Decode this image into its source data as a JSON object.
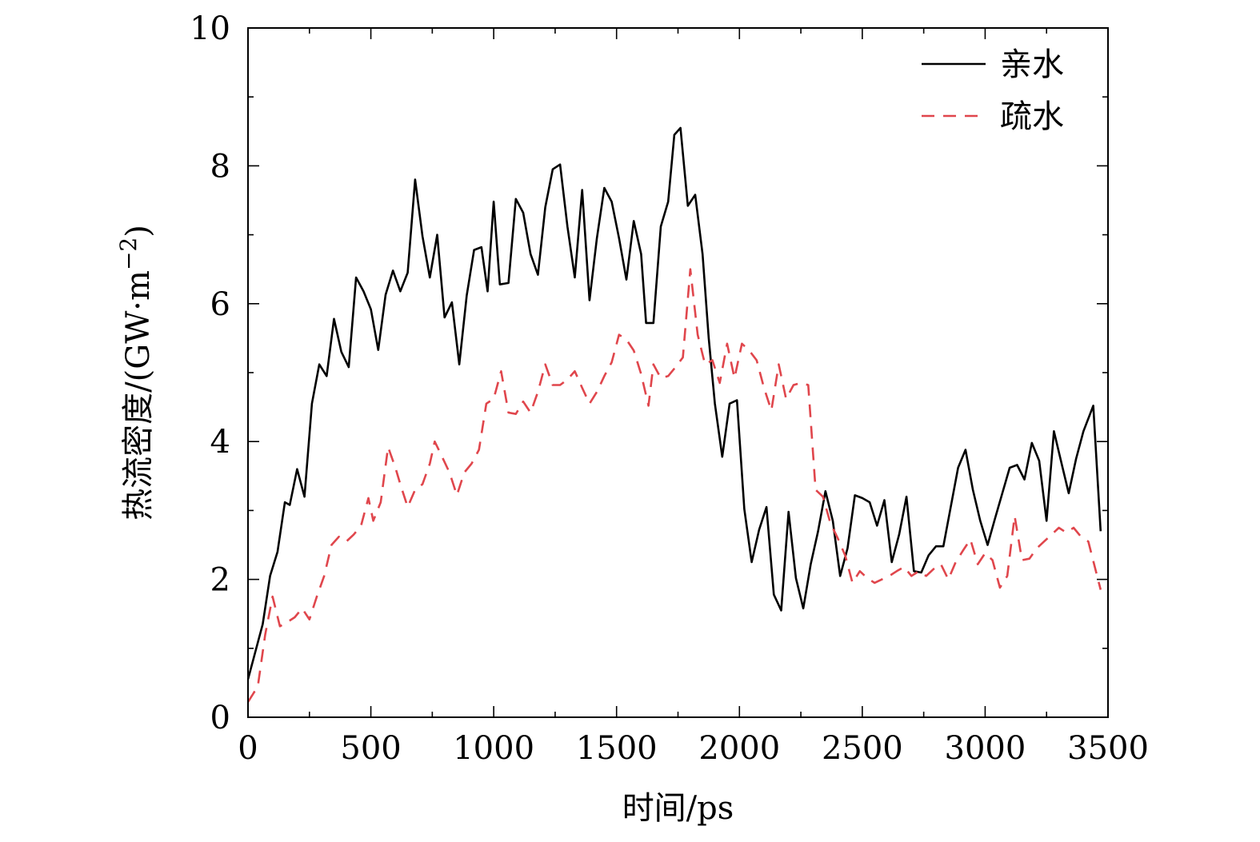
{
  "chart_data": {
    "type": "line",
    "xlabel": "时间/ps",
    "ylabel_main": "热流密度/(GW·m",
    "ylabel_exp": "−2",
    "ylabel_close": ")",
    "xlim": [
      0,
      3500
    ],
    "ylim": [
      0,
      10
    ],
    "xticks": [
      0,
      500,
      1000,
      1500,
      2000,
      2500,
      3000,
      3500
    ],
    "yticks": [
      0,
      2,
      4,
      6,
      8,
      10
    ],
    "legend_position": "top-right",
    "series": [
      {
        "name": "亲水",
        "color": "#000000",
        "style": "solid",
        "points": [
          [
            0,
            0.55
          ],
          [
            30,
            0.95
          ],
          [
            60,
            1.35
          ],
          [
            90,
            2.05
          ],
          [
            120,
            2.4
          ],
          [
            150,
            3.12
          ],
          [
            170,
            3.08
          ],
          [
            200,
            3.6
          ],
          [
            230,
            3.2
          ],
          [
            260,
            4.55
          ],
          [
            290,
            5.12
          ],
          [
            320,
            4.95
          ],
          [
            350,
            5.78
          ],
          [
            380,
            5.3
          ],
          [
            410,
            5.08
          ],
          [
            440,
            6.38
          ],
          [
            470,
            6.18
          ],
          [
            500,
            5.92
          ],
          [
            530,
            5.33
          ],
          [
            560,
            6.13
          ],
          [
            590,
            6.48
          ],
          [
            620,
            6.18
          ],
          [
            650,
            6.45
          ],
          [
            680,
            7.8
          ],
          [
            710,
            6.98
          ],
          [
            740,
            6.38
          ],
          [
            770,
            7.0
          ],
          [
            800,
            5.8
          ],
          [
            830,
            6.02
          ],
          [
            860,
            5.12
          ],
          [
            890,
            6.12
          ],
          [
            920,
            6.78
          ],
          [
            950,
            6.82
          ],
          [
            975,
            6.18
          ],
          [
            1000,
            7.48
          ],
          [
            1025,
            6.28
          ],
          [
            1060,
            6.3
          ],
          [
            1090,
            7.52
          ],
          [
            1120,
            7.32
          ],
          [
            1150,
            6.72
          ],
          [
            1180,
            6.42
          ],
          [
            1210,
            7.4
          ],
          [
            1240,
            7.95
          ],
          [
            1270,
            8.02
          ],
          [
            1300,
            7.12
          ],
          [
            1330,
            6.38
          ],
          [
            1360,
            7.65
          ],
          [
            1390,
            6.05
          ],
          [
            1420,
            6.95
          ],
          [
            1450,
            7.68
          ],
          [
            1480,
            7.48
          ],
          [
            1510,
            6.95
          ],
          [
            1540,
            6.35
          ],
          [
            1570,
            7.2
          ],
          [
            1600,
            6.72
          ],
          [
            1620,
            5.72
          ],
          [
            1650,
            5.72
          ],
          [
            1680,
            7.12
          ],
          [
            1710,
            7.48
          ],
          [
            1735,
            8.45
          ],
          [
            1760,
            8.55
          ],
          [
            1790,
            7.42
          ],
          [
            1820,
            7.58
          ],
          [
            1850,
            6.72
          ],
          [
            1875,
            5.5
          ],
          [
            1900,
            4.55
          ],
          [
            1930,
            3.78
          ],
          [
            1960,
            4.55
          ],
          [
            1990,
            4.6
          ],
          [
            2020,
            3.02
          ],
          [
            2050,
            2.25
          ],
          [
            2080,
            2.72
          ],
          [
            2110,
            3.05
          ],
          [
            2140,
            1.78
          ],
          [
            2170,
            1.55
          ],
          [
            2200,
            2.98
          ],
          [
            2230,
            2.02
          ],
          [
            2260,
            1.58
          ],
          [
            2290,
            2.22
          ],
          [
            2320,
            2.7
          ],
          [
            2350,
            3.28
          ],
          [
            2380,
            2.85
          ],
          [
            2410,
            2.05
          ],
          [
            2440,
            2.45
          ],
          [
            2470,
            3.22
          ],
          [
            2500,
            3.18
          ],
          [
            2530,
            3.12
          ],
          [
            2560,
            2.78
          ],
          [
            2590,
            3.15
          ],
          [
            2620,
            2.25
          ],
          [
            2650,
            2.65
          ],
          [
            2680,
            3.2
          ],
          [
            2710,
            2.12
          ],
          [
            2740,
            2.1
          ],
          [
            2770,
            2.35
          ],
          [
            2800,
            2.48
          ],
          [
            2830,
            2.48
          ],
          [
            2860,
            3.05
          ],
          [
            2890,
            3.62
          ],
          [
            2920,
            3.88
          ],
          [
            2950,
            3.3
          ],
          [
            2980,
            2.85
          ],
          [
            3010,
            2.5
          ],
          [
            3040,
            2.88
          ],
          [
            3070,
            3.25
          ],
          [
            3100,
            3.62
          ],
          [
            3130,
            3.66
          ],
          [
            3160,
            3.45
          ],
          [
            3190,
            3.98
          ],
          [
            3220,
            3.72
          ],
          [
            3250,
            2.85
          ],
          [
            3280,
            4.15
          ],
          [
            3310,
            3.7
          ],
          [
            3340,
            3.25
          ],
          [
            3370,
            3.75
          ],
          [
            3400,
            4.15
          ],
          [
            3440,
            4.52
          ],
          [
            3470,
            2.7
          ]
        ]
      },
      {
        "name": "疏水",
        "color": "#e0464c",
        "style": "dashed",
        "points": [
          [
            0,
            0.22
          ],
          [
            40,
            0.45
          ],
          [
            70,
            1.2
          ],
          [
            100,
            1.75
          ],
          [
            130,
            1.32
          ],
          [
            160,
            1.38
          ],
          [
            190,
            1.45
          ],
          [
            220,
            1.58
          ],
          [
            250,
            1.42
          ],
          [
            280,
            1.75
          ],
          [
            310,
            2.05
          ],
          [
            340,
            2.5
          ],
          [
            370,
            2.62
          ],
          [
            400,
            2.55
          ],
          [
            430,
            2.65
          ],
          [
            460,
            2.78
          ],
          [
            490,
            3.18
          ],
          [
            510,
            2.85
          ],
          [
            540,
            3.12
          ],
          [
            570,
            3.92
          ],
          [
            600,
            3.62
          ],
          [
            620,
            3.38
          ],
          [
            650,
            3.05
          ],
          [
            680,
            3.3
          ],
          [
            710,
            3.38
          ],
          [
            740,
            3.68
          ],
          [
            760,
            4.0
          ],
          [
            790,
            3.78
          ],
          [
            820,
            3.55
          ],
          [
            850,
            3.22
          ],
          [
            880,
            3.55
          ],
          [
            910,
            3.68
          ],
          [
            940,
            3.88
          ],
          [
            970,
            4.55
          ],
          [
            1000,
            4.62
          ],
          [
            1030,
            5.02
          ],
          [
            1060,
            4.42
          ],
          [
            1090,
            4.4
          ],
          [
            1120,
            4.58
          ],
          [
            1150,
            4.42
          ],
          [
            1180,
            4.72
          ],
          [
            1210,
            5.12
          ],
          [
            1240,
            4.82
          ],
          [
            1270,
            4.82
          ],
          [
            1300,
            4.9
          ],
          [
            1330,
            5.02
          ],
          [
            1360,
            4.78
          ],
          [
            1390,
            4.55
          ],
          [
            1420,
            4.72
          ],
          [
            1450,
            4.95
          ],
          [
            1480,
            5.15
          ],
          [
            1510,
            5.55
          ],
          [
            1540,
            5.48
          ],
          [
            1570,
            5.32
          ],
          [
            1600,
            4.98
          ],
          [
            1630,
            4.52
          ],
          [
            1650,
            5.12
          ],
          [
            1680,
            4.92
          ],
          [
            1710,
            4.95
          ],
          [
            1740,
            5.08
          ],
          [
            1770,
            5.22
          ],
          [
            1800,
            6.5
          ],
          [
            1830,
            5.55
          ],
          [
            1860,
            5.12
          ],
          [
            1890,
            5.18
          ],
          [
            1920,
            4.85
          ],
          [
            1950,
            5.42
          ],
          [
            1980,
            4.92
          ],
          [
            2010,
            5.42
          ],
          [
            2040,
            5.32
          ],
          [
            2070,
            5.18
          ],
          [
            2100,
            4.78
          ],
          [
            2130,
            4.45
          ],
          [
            2160,
            5.12
          ],
          [
            2190,
            4.62
          ],
          [
            2220,
            4.82
          ],
          [
            2250,
            4.85
          ],
          [
            2280,
            4.82
          ],
          [
            2310,
            3.3
          ],
          [
            2340,
            3.2
          ],
          [
            2370,
            2.82
          ],
          [
            2400,
            2.6
          ],
          [
            2430,
            2.35
          ],
          [
            2460,
            1.95
          ],
          [
            2490,
            2.12
          ],
          [
            2520,
            2.02
          ],
          [
            2550,
            1.95
          ],
          [
            2580,
            2.0
          ],
          [
            2610,
            2.05
          ],
          [
            2640,
            2.12
          ],
          [
            2670,
            2.18
          ],
          [
            2700,
            2.05
          ],
          [
            2730,
            2.12
          ],
          [
            2760,
            2.05
          ],
          [
            2790,
            2.15
          ],
          [
            2820,
            2.22
          ],
          [
            2850,
            2.0
          ],
          [
            2880,
            2.25
          ],
          [
            2910,
            2.42
          ],
          [
            2940,
            2.58
          ],
          [
            2970,
            2.22
          ],
          [
            3000,
            2.38
          ],
          [
            3030,
            2.28
          ],
          [
            3060,
            1.88
          ],
          [
            3090,
            2.05
          ],
          [
            3120,
            2.92
          ],
          [
            3150,
            2.28
          ],
          [
            3180,
            2.3
          ],
          [
            3210,
            2.45
          ],
          [
            3240,
            2.55
          ],
          [
            3270,
            2.65
          ],
          [
            3300,
            2.75
          ],
          [
            3330,
            2.68
          ],
          [
            3360,
            2.75
          ],
          [
            3390,
            2.62
          ],
          [
            3420,
            2.55
          ],
          [
            3470,
            1.85
          ]
        ]
      }
    ]
  }
}
